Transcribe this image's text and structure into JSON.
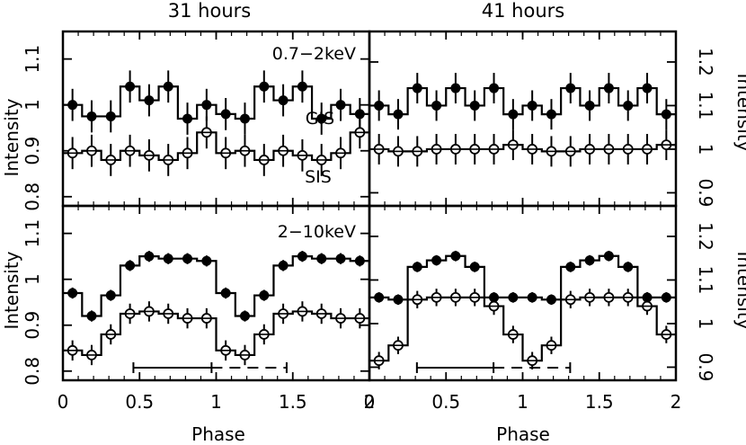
{
  "chart_data": {
    "type": "step-line",
    "columns": [
      "31 hours",
      "41 hours"
    ],
    "xlabel": "Phase",
    "ylabel": "Intensity",
    "xlim": [
      0,
      2
    ],
    "x_ticks": [
      "0",
      "0.5",
      "1",
      "1.5",
      "2"
    ],
    "x_ticks_last_column": [
      "0",
      "0.5",
      "1",
      "1.5",
      "2"
    ],
    "x_centers": [
      0.0625,
      0.1875,
      0.3125,
      0.4375,
      0.5625,
      0.6875,
      0.8125,
      0.9375,
      1.0625,
      1.1875,
      1.3125,
      1.4375,
      1.5625,
      1.6875,
      1.8125,
      1.9375
    ],
    "y_ticks_left": [
      "0.8",
      "0.9",
      "1",
      "1.1"
    ],
    "y_ticks_right": [
      "0.9",
      "1",
      "1.1",
      "1.2"
    ],
    "panels": [
      {
        "band": "0.7−2keV",
        "column": "31 hours",
        "ylim": [
          0.78,
          1.16
        ],
        "y_ticks": [
          0.8,
          0.9,
          1.0,
          1.1
        ],
        "series": [
          {
            "name": "GIS",
            "filled": true,
            "values": [
              1.0,
              0.975,
              0.975,
              1.04,
              1.01,
              1.04,
              0.97,
              1.0,
              0.98,
              0.97,
              1.04,
              1.01,
              1.04,
              0.97,
              1.0,
              0.98
            ],
            "errors": [
              0.035,
              0.035,
              0.035,
              0.035,
              0.035,
              0.035,
              0.035,
              0.035,
              0.035,
              0.035,
              0.035,
              0.035,
              0.035,
              0.035,
              0.035,
              0.035
            ]
          },
          {
            "name": "SIS",
            "filled": false,
            "values": [
              0.895,
              0.9,
              0.88,
              0.9,
              0.89,
              0.88,
              0.895,
              0.94,
              0.895,
              0.9,
              0.88,
              0.9,
              0.89,
              0.88,
              0.895,
              0.94
            ],
            "errors": [
              0.035,
              0.035,
              0.035,
              0.035,
              0.035,
              0.035,
              0.035,
              0.035,
              0.035,
              0.035,
              0.035,
              0.035,
              0.035,
              0.035,
              0.035,
              0.035
            ]
          }
        ]
      },
      {
        "band": "",
        "column": "41 hours",
        "ylim": [
          0.87,
          1.27
        ],
        "y_ticks": [
          0.9,
          1.0,
          1.1,
          1.2
        ],
        "series": [
          {
            "name": "",
            "filled": true,
            "values": [
              1.1,
              1.08,
              1.14,
              1.1,
              1.14,
              1.1,
              1.14,
              1.08,
              1.1,
              1.08,
              1.14,
              1.1,
              1.14,
              1.1,
              1.14,
              1.08
            ],
            "errors": [
              0.035,
              0.035,
              0.035,
              0.035,
              0.035,
              0.035,
              0.035,
              0.035,
              0.035,
              0.035,
              0.035,
              0.035,
              0.035,
              0.035,
              0.035,
              0.035
            ]
          },
          {
            "name": "",
            "filled": false,
            "values": [
              1.0,
              0.995,
              0.995,
              1.0,
              1.0,
              1.0,
              1.0,
              1.01,
              1.0,
              0.995,
              0.995,
              1.0,
              1.0,
              1.0,
              1.0,
              1.01
            ],
            "errors": [
              0.035,
              0.035,
              0.035,
              0.035,
              0.035,
              0.035,
              0.035,
              0.035,
              0.035,
              0.035,
              0.035,
              0.035,
              0.035,
              0.035,
              0.035,
              0.035
            ]
          }
        ]
      },
      {
        "band": "2−10keV",
        "column": "31 hours",
        "ylim": [
          0.78,
          1.16
        ],
        "y_ticks": [
          0.8,
          0.9,
          1.0,
          1.1
        ],
        "series": [
          {
            "name": "",
            "filled": true,
            "values": [
              0.97,
              0.92,
              0.965,
              1.03,
              1.05,
              1.045,
              1.045,
              1.04,
              0.97,
              0.92,
              0.965,
              1.03,
              1.05,
              1.045,
              1.045,
              1.04
            ],
            "errors": [
              0.012,
              0.012,
              0.012,
              0.012,
              0.012,
              0.012,
              0.012,
              0.012,
              0.012,
              0.012,
              0.012,
              0.012,
              0.012,
              0.012,
              0.012,
              0.012
            ]
          },
          {
            "name": "",
            "filled": false,
            "values": [
              0.845,
              0.835,
              0.88,
              0.925,
              0.93,
              0.925,
              0.915,
              0.915,
              0.845,
              0.835,
              0.88,
              0.925,
              0.93,
              0.925,
              0.915,
              0.915
            ],
            "errors": [
              0.022,
              0.022,
              0.022,
              0.022,
              0.022,
              0.022,
              0.022,
              0.022,
              0.022,
              0.022,
              0.022,
              0.022,
              0.022,
              0.022,
              0.022,
              0.022
            ]
          }
        ]
      },
      {
        "band": "",
        "column": "41 hours",
        "ylim": [
          0.87,
          1.27
        ],
        "y_ticks": [
          0.9,
          1.0,
          1.1,
          1.2
        ],
        "series": [
          {
            "name": "",
            "filled": true,
            "values": [
              1.06,
              1.055,
              1.13,
              1.145,
              1.155,
              1.13,
              1.06,
              1.06,
              1.06,
              1.055,
              1.13,
              1.145,
              1.155,
              1.13,
              1.06,
              1.06
            ],
            "errors": [
              0.012,
              0.012,
              0.012,
              0.012,
              0.012,
              0.012,
              0.012,
              0.012,
              0.012,
              0.012,
              0.012,
              0.012,
              0.012,
              0.012,
              0.012,
              0.012
            ]
          },
          {
            "name": "",
            "filled": false,
            "values": [
              0.915,
              0.95,
              1.055,
              1.06,
              1.06,
              1.06,
              1.04,
              0.975,
              0.915,
              0.95,
              1.055,
              1.06,
              1.06,
              1.06,
              1.04,
              0.975
            ],
            "errors": [
              0.02,
              0.02,
              0.02,
              0.02,
              0.02,
              0.02,
              0.02,
              0.02,
              0.02,
              0.02,
              0.02,
              0.02,
              0.02,
              0.02,
              0.02,
              0.02
            ]
          }
        ]
      }
    ],
    "eclipse_markers": [
      {
        "column": "31 hours",
        "solid": [
          0.46,
          0.97
        ],
        "dashed": [
          0.97,
          1.46
        ]
      },
      {
        "column": "41 hours",
        "solid": [
          0.31,
          0.81
        ],
        "dashed": [
          0.81,
          1.31
        ]
      }
    ]
  }
}
